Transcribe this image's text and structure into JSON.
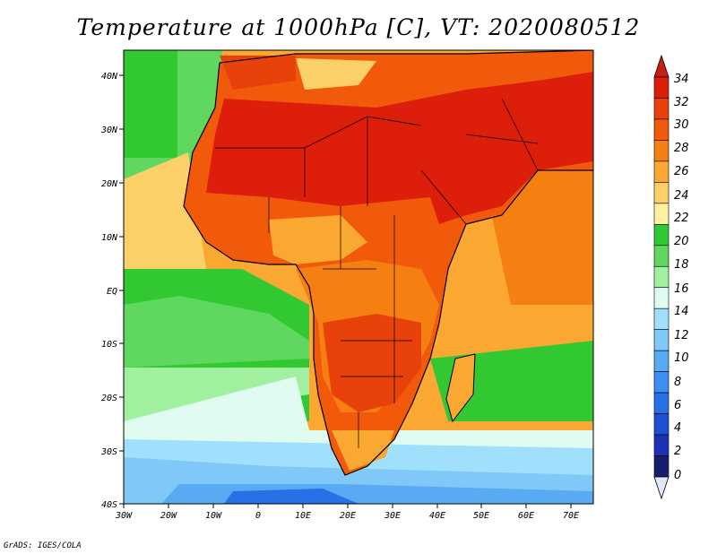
{
  "title": "Temperature at 1000hPa [C], VT: 2020080512",
  "credit": "GrADS: IGES/COLA",
  "lat_labels": [
    "40N",
    "30N",
    "20N",
    "10N",
    "EQ",
    "10S",
    "20S",
    "30S",
    "40S"
  ],
  "lon_labels": [
    "30W",
    "20W",
    "10W",
    "0",
    "10E",
    "20E",
    "30E",
    "40E",
    "50E",
    "60E",
    "70E"
  ],
  "map": {
    "lon_range": [
      -30,
      75
    ],
    "lat_range": [
      -40,
      45
    ],
    "variable": "Temperature",
    "level": "1000hPa",
    "units": "C"
  },
  "colorbar": {
    "labels": [
      "34",
      "32",
      "30",
      "28",
      "26",
      "24",
      "22",
      "20",
      "18",
      "16",
      "14",
      "12",
      "10",
      "8",
      "6",
      "4",
      "2",
      "0"
    ],
    "colors": [
      "#dc1e0a",
      "#e8410a",
      "#f05a0a",
      "#f67f12",
      "#faa832",
      "#fcd068",
      "#fdf0a0",
      "#32c832",
      "#60d860",
      "#a0f0a0",
      "#e0fcf0",
      "#a0e0fc",
      "#80c8f8",
      "#58aaf2",
      "#3c8ef0",
      "#2870e6",
      "#1e50d0",
      "#1e32b4",
      "#181e6e"
    ],
    "top_color": "#c81e14",
    "bottom_color": "#e6e6fa"
  }
}
